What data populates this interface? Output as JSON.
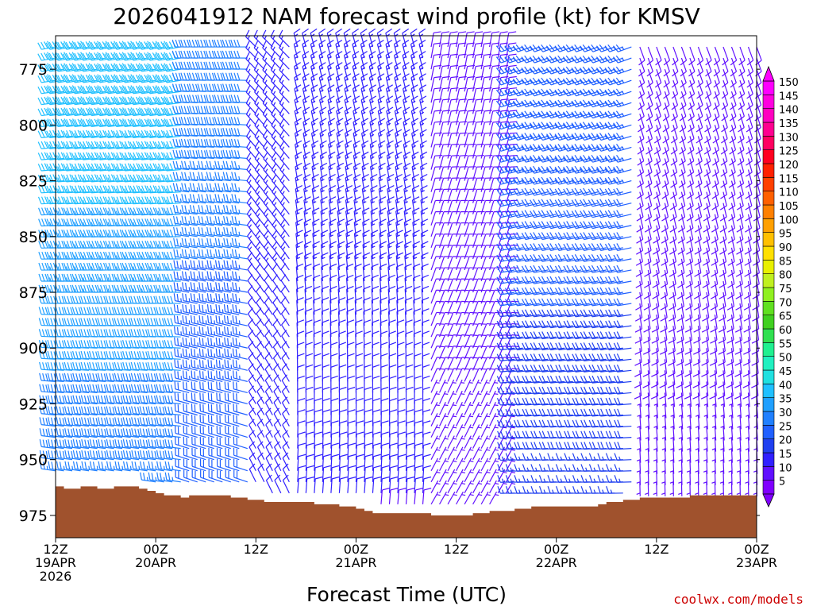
{
  "chart_data": {
    "type": "wind-barb-profile",
    "title": "2026041912 NAM forecast wind profile (kt) for KMSV",
    "xlabel": "Forecast Time (UTC)",
    "ylabel": "",
    "y_axis": {
      "scale": "pressure",
      "inverted": true,
      "range_hpa": [
        985,
        760
      ],
      "ticks": [
        775,
        800,
        825,
        850,
        875,
        900,
        925,
        950,
        975
      ]
    },
    "x_axis": {
      "range_hours": [
        0,
        84
      ],
      "ticks": [
        {
          "hour": 0,
          "lines": [
            "12Z",
            "19APR",
            "2026"
          ]
        },
        {
          "hour": 12,
          "lines": [
            "00Z",
            "20APR"
          ]
        },
        {
          "hour": 24,
          "lines": [
            "12Z"
          ]
        },
        {
          "hour": 36,
          "lines": [
            "00Z",
            "21APR"
          ]
        },
        {
          "hour": 48,
          "lines": [
            "12Z"
          ]
        },
        {
          "hour": 60,
          "lines": [
            "00Z",
            "22APR"
          ]
        },
        {
          "hour": 72,
          "lines": [
            "12Z"
          ]
        },
        {
          "hour": 84,
          "lines": [
            "00Z",
            "23APR"
          ]
        }
      ]
    },
    "colorbar": {
      "units": "kt",
      "levels": [
        5,
        10,
        15,
        20,
        25,
        30,
        35,
        40,
        45,
        50,
        55,
        60,
        65,
        70,
        75,
        80,
        85,
        90,
        95,
        100,
        105,
        110,
        115,
        120,
        125,
        130,
        135,
        140,
        145,
        150
      ],
      "colors": [
        "#8000ff",
        "#6010ff",
        "#3020ff",
        "#2040f0",
        "#2060ff",
        "#2080ff",
        "#20a0ff",
        "#20c0ff",
        "#20e0e0",
        "#20f0c0",
        "#20f090",
        "#30e050",
        "#40d020",
        "#60e020",
        "#90f020",
        "#c0f020",
        "#e8f000",
        "#ffe000",
        "#ffc000",
        "#ffa000",
        "#ff8000",
        "#ff6000",
        "#ff4000",
        "#ff2000",
        "#ff0020",
        "#ff0060",
        "#ff0090",
        "#ff00c0",
        "#ff00e0",
        "#ff00ff"
      ]
    },
    "surface_pressure_hpa": [
      [
        0,
        962
      ],
      [
        1,
        963
      ],
      [
        3,
        962
      ],
      [
        5,
        963
      ],
      [
        7,
        962
      ],
      [
        10,
        963
      ],
      [
        11,
        964
      ],
      [
        12,
        965
      ],
      [
        13,
        966
      ],
      [
        15,
        967
      ],
      [
        16,
        966
      ],
      [
        21,
        967
      ],
      [
        23,
        968
      ],
      [
        25,
        969
      ],
      [
        30,
        969
      ],
      [
        31,
        970
      ],
      [
        34,
        971
      ],
      [
        36,
        972
      ],
      [
        37,
        973
      ],
      [
        38,
        974
      ],
      [
        41,
        974
      ],
      [
        44,
        974
      ],
      [
        45,
        975
      ],
      [
        48,
        975
      ],
      [
        50,
        974
      ],
      [
        52,
        973
      ],
      [
        55,
        972
      ],
      [
        57,
        971
      ],
      [
        62,
        971
      ],
      [
        65,
        970
      ],
      [
        66,
        969
      ],
      [
        68,
        968
      ],
      [
        70,
        967
      ],
      [
        75,
        967
      ],
      [
        76,
        966
      ],
      [
        79,
        966
      ],
      [
        84,
        966
      ]
    ],
    "barb_rows_hpa": [
      765,
      770,
      775,
      780,
      785,
      790,
      795,
      800,
      805,
      810,
      815,
      820,
      825,
      830,
      835,
      840,
      845,
      850,
      855,
      860,
      865,
      870,
      875,
      880,
      885,
      890,
      895,
      900,
      905,
      910,
      915,
      920,
      925,
      930,
      935,
      940,
      945,
      950,
      955,
      960,
      965,
      970,
      975
    ],
    "barb_columns_hour_step": 1,
    "wind_regimes": [
      {
        "hours": [
          0,
          16
        ],
        "speed_kt": 40,
        "dir_deg": 260
      },
      {
        "hours": [
          16,
          24
        ],
        "speed_kt": 30,
        "dir_deg": 270
      },
      {
        "hours": [
          24,
          29
        ],
        "speed_kt": 15,
        "dir_deg": 315
      },
      {
        "hours": [
          29,
          45
        ],
        "speed_kt": 15,
        "dir_deg": 345
      },
      {
        "hours": [
          45,
          55
        ],
        "speed_kt": 10,
        "dir_deg": 10
      },
      {
        "hours": [
          55,
          70
        ],
        "speed_kt": 25,
        "dir_deg": 250
      },
      {
        "hours": [
          70,
          84
        ],
        "speed_kt": 10,
        "dir_deg": 160
      }
    ]
  }
}
